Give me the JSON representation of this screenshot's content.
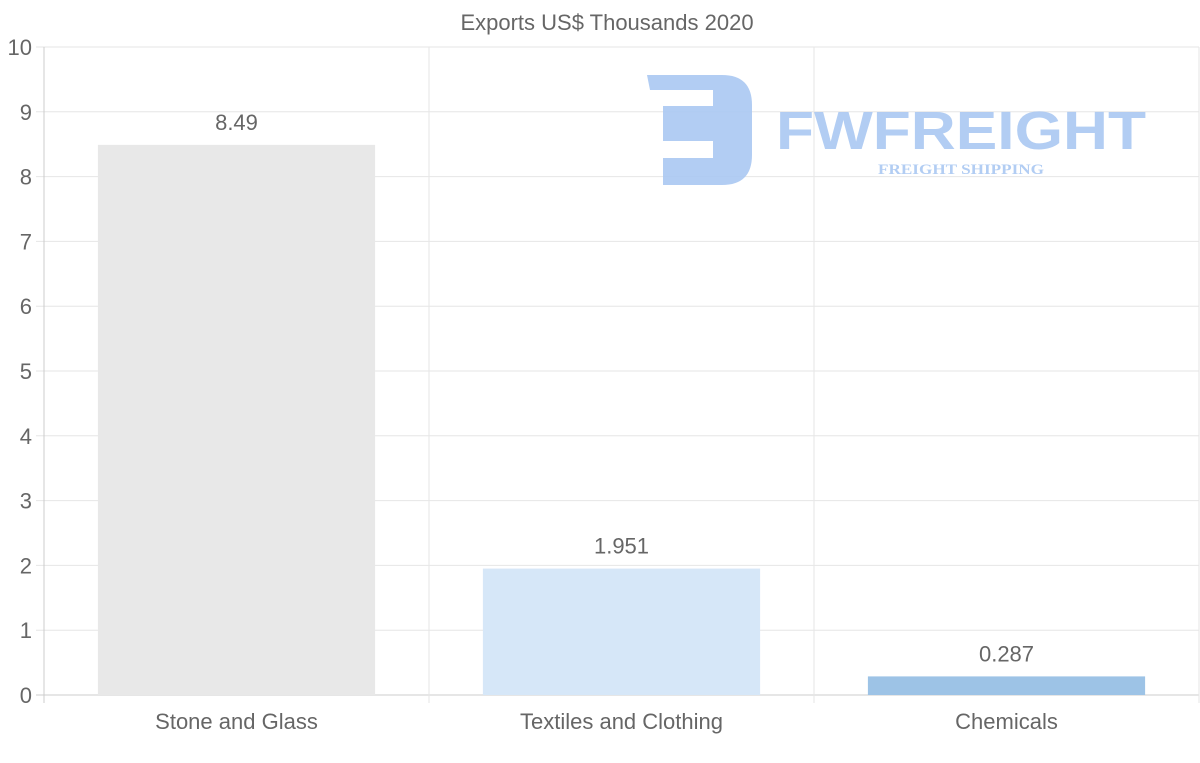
{
  "chart_data": {
    "type": "bar",
    "title": "Exports US$ Thousands 2020",
    "categories": [
      "Stone and Glass",
      "Textiles and Clothing",
      "Chemicals"
    ],
    "values": [
      8.49,
      1.951,
      0.287
    ],
    "data_labels": [
      "8.49",
      "1.951",
      "0.287"
    ],
    "colors": [
      "#e8e8e8",
      "#d6e7f8",
      "#9dc3e6"
    ],
    "xlabel": "",
    "ylabel": "",
    "ylim": [
      0,
      10
    ],
    "yticks": [
      "0",
      "1",
      "2",
      "3",
      "4",
      "5",
      "6",
      "7",
      "8",
      "9",
      "10"
    ],
    "grid": true,
    "legend": "none"
  },
  "watermark": {
    "brand": "FWFREIGHT",
    "tagline": "FREIGHT SHIPPING",
    "color": "#aac8f2"
  }
}
